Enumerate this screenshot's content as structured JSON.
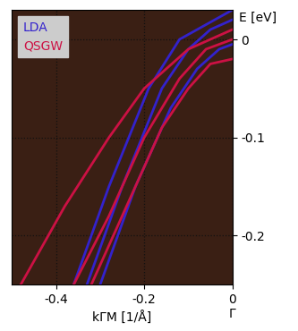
{
  "chart_data": {
    "type": "line",
    "x_label": "kΓM [1/Å]",
    "y_label": "E [eV]",
    "gamma_label": "Γ",
    "xlim": [
      -0.5,
      0
    ],
    "xticks": [
      -0.4,
      -0.2,
      0
    ],
    "ylim": [
      -0.25,
      0.03
    ],
    "yticks": [
      -0.2,
      -0.1,
      0
    ],
    "grid": true,
    "legend": "upper left",
    "series": [
      {
        "name": "LDA",
        "color": "#3322cc",
        "bands": [
          {
            "x": [
              -0.36,
              -0.28,
              -0.19,
              -0.12,
              -0.02,
              0
            ],
            "values": [
              -0.25,
              -0.15,
              -0.05,
              0.0,
              0.025,
              0.03
            ]
          },
          {
            "x": [
              -0.33,
              -0.25,
              -0.16,
              -0.1,
              -0.05,
              0
            ],
            "values": [
              -0.25,
              -0.15,
              -0.05,
              -0.01,
              0.01,
              0.02
            ]
          },
          {
            "x": [
              -0.3,
              -0.22,
              -0.14,
              -0.08,
              -0.03,
              0
            ],
            "values": [
              -0.25,
              -0.15,
              -0.07,
              -0.03,
              -0.01,
              -0.005
            ]
          }
        ]
      },
      {
        "name": "QSGW",
        "color": "#cc1144",
        "bands": [
          {
            "x": [
              -0.48,
              -0.38,
              -0.28,
              -0.2,
              -0.1,
              0
            ],
            "values": [
              -0.25,
              -0.17,
              -0.1,
              -0.05,
              -0.01,
              0.01
            ]
          },
          {
            "x": [
              -0.36,
              -0.28,
              -0.2,
              -0.12,
              -0.06,
              0
            ],
            "values": [
              -0.25,
              -0.18,
              -0.1,
              -0.04,
              -0.01,
              0.0
            ]
          },
          {
            "x": [
              -0.32,
              -0.24,
              -0.16,
              -0.1,
              -0.05,
              0
            ],
            "values": [
              -0.25,
              -0.17,
              -0.09,
              -0.05,
              -0.025,
              -0.02
            ]
          }
        ]
      }
    ]
  }
}
